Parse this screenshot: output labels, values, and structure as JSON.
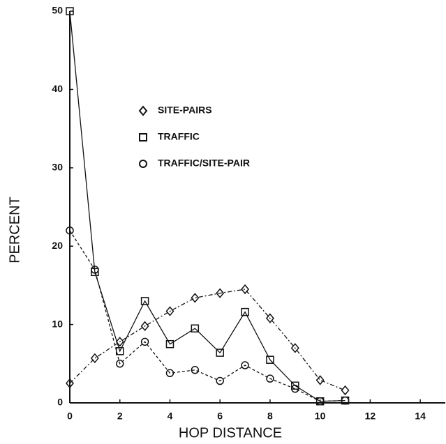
{
  "chart_data": {
    "type": "line",
    "x_label": "HOP DISTANCE",
    "y_label": "PERCENT",
    "x": [
      0,
      1,
      2,
      3,
      4,
      5,
      6,
      7,
      8,
      9,
      10,
      11
    ],
    "series": [
      {
        "name": "SITE-PAIRS",
        "color": "#111111",
        "marker": "diamond",
        "dash": "6 3 2 3",
        "values": [
          2.5,
          5.7,
          7.8,
          9.8,
          11.7,
          13.4,
          14,
          14.5,
          10.8,
          7,
          2.9,
          1.6
        ]
      },
      {
        "name": "TRAFFIC",
        "color": "#111111",
        "marker": "square",
        "dash": "none",
        "values": [
          50,
          16.7,
          6.6,
          13,
          7.5,
          9.5,
          6.4,
          11.6,
          5.5,
          2.2,
          0.2,
          0.3
        ]
      },
      {
        "name": "TRAFFIC/SITE-PAIR",
        "color": "#111111",
        "marker": "circle",
        "dash": "4 3",
        "values": [
          22,
          17,
          5,
          7.8,
          3.8,
          4.2,
          2.8,
          4.8,
          3.1,
          1.8,
          0.2,
          0.3
        ]
      }
    ],
    "xlim": [
      0,
      15
    ],
    "ylim": [
      0,
      50
    ],
    "xticks": [
      0,
      2,
      4,
      6,
      8,
      10,
      12,
      14
    ],
    "yticks": [
      0,
      10,
      20,
      30,
      40,
      50
    ],
    "grid": false
  }
}
